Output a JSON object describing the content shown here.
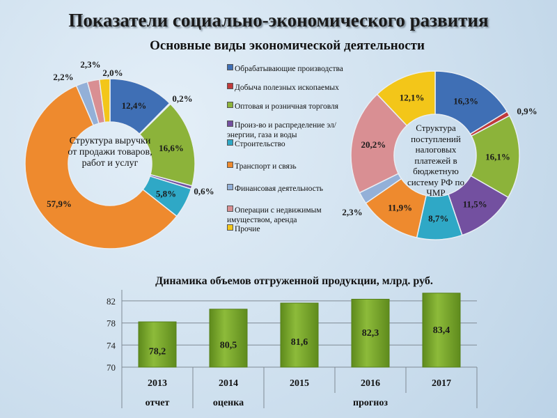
{
  "header": {
    "title": "Показатели социально-экономического развития",
    "subtitle": "Основные виды экономической деятельности"
  },
  "legend": [
    {
      "label": "Обрабатывающие производства",
      "color": "#3f6fb5"
    },
    {
      "label": "Добыча полезных ископаемых",
      "color": "#c0393b"
    },
    {
      "label": "Оптовая и розничная торговля",
      "color": "#8cb33a"
    },
    {
      "label": "Произ-во и распределение эл/энергии, газа и воды",
      "color": "#7350a0"
    },
    {
      "label": "Строительство",
      "color": "#2fa8c6"
    },
    {
      "label": "Транспорт и связь",
      "color": "#ee8a2e"
    },
    {
      "label": "Финансовая деятельность",
      "color": "#93b0d8"
    },
    {
      "label": "Операции с недвижимым имуществом, аренда",
      "color": "#d98f93"
    },
    {
      "label": "Прочие",
      "color": "#f3c619"
    }
  ],
  "chart_data": [
    {
      "type": "pie",
      "donut": true,
      "center_label": "Структура выручки от продажи товаров, работ и услуг",
      "categories": [
        "Обрабатывающие производства",
        "Добыча полезных ископаемых",
        "Оптовая и розничная торговля",
        "Произ-во и распределение эл/энергии, газа и воды",
        "Строительство",
        "Транспорт и связь",
        "Финансовая деятельность",
        "Операции с недвижимым имуществом, аренда",
        "Прочие"
      ],
      "values": [
        12.4,
        0.2,
        16.6,
        0.6,
        5.8,
        57.9,
        2.2,
        2.3,
        2.0
      ],
      "labels": [
        "12,4%",
        "0,2%",
        "16,6%",
        "0,6%",
        "5,8%",
        "57,9%",
        "2,2%",
        "2,3%",
        "2,0%"
      ]
    },
    {
      "type": "pie",
      "donut": true,
      "center_label": "Структура поступлений налоговых платежей в бюджетную систему РФ по ЧМР",
      "categories": [
        "Обрабатывающие производства",
        "Добыча полезных ископаемых",
        "Оптовая и розничная торговля",
        "Произ-во и распределение эл/энергии, газа и воды",
        "Строительство",
        "Транспорт и связь",
        "Финансовая деятельность",
        "Операции с недвижимым имуществом, аренда",
        "Прочие"
      ],
      "values": [
        16.3,
        0.9,
        16.1,
        11.5,
        8.7,
        11.9,
        2.3,
        20.2,
        12.1
      ],
      "labels": [
        "16,3%",
        "0,9%",
        "16,1%",
        "11,5%",
        "8,7%",
        "11,9%",
        "2,3%",
        "20,2%",
        "12,1%"
      ]
    },
    {
      "type": "bar",
      "title": "Динамика объемов отгруженной продукции, млрд. руб.",
      "categories": [
        "2013",
        "2014",
        "2015",
        "2016",
        "2017"
      ],
      "values": [
        78.2,
        80.5,
        81.6,
        82.3,
        83.4
      ],
      "labels": [
        "78,2",
        "80,5",
        "81,6",
        "82,3",
        "83,4"
      ],
      "yticks": [
        70,
        74,
        78,
        82
      ],
      "ylim": [
        70,
        84
      ],
      "grid": true,
      "color": "#7fae2e",
      "status_row": [
        {
          "label": "отчет",
          "span": [
            "2013"
          ]
        },
        {
          "label": "оценка",
          "span": [
            "2014"
          ]
        },
        {
          "label": "прогноз",
          "span": [
            "2015",
            "2016",
            "2017"
          ]
        }
      ]
    }
  ]
}
